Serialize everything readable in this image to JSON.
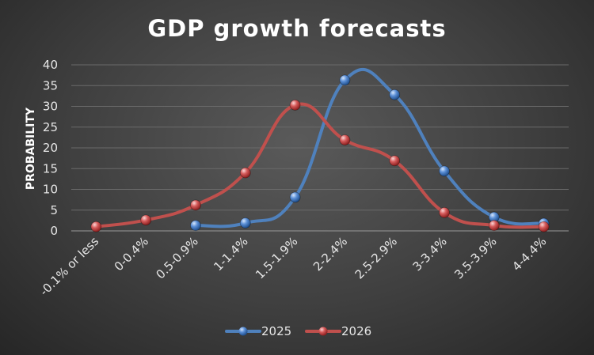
{
  "chart_data": {
    "type": "line",
    "title": "GDP growth forecasts",
    "xlabel": "",
    "ylabel": "PROBABILITY",
    "categories": [
      "-0.1% or less",
      "0-0.4%",
      "0.5-0.9%",
      "1-1.4%",
      "1.5-1.9%",
      "2-2.4%",
      "2.5-2.9%",
      "3-3.4%",
      "3.5-3.9%",
      "4-4.4%"
    ],
    "ylim": [
      0,
      40
    ],
    "yticks": [
      0,
      5,
      10,
      15,
      20,
      25,
      30,
      35,
      40
    ],
    "grid": true,
    "legend": "bottom",
    "series": [
      {
        "name": "2025",
        "color": "#4f81bd",
        "values": [
          null,
          null,
          1.3,
          1.9,
          8.1,
          36.3,
          32.8,
          14.4,
          3.3,
          1.8
        ]
      },
      {
        "name": "2026",
        "color": "#c0504d",
        "values": [
          1.0,
          2.6,
          6.2,
          14.0,
          30.3,
          21.9,
          16.9,
          4.4,
          1.3,
          1.0
        ]
      }
    ]
  }
}
